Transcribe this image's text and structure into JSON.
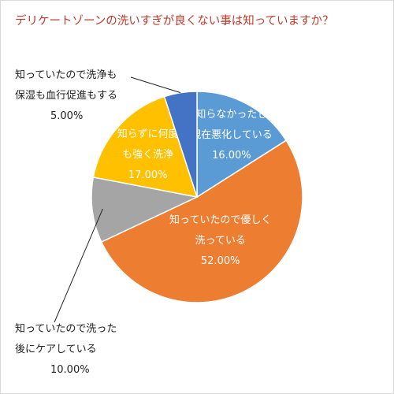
{
  "chart_data": {
    "type": "pie",
    "title": "デリケートゾーンの洗いすぎが良くない事は知っていますか？",
    "slices": [
      {
        "label_lines": [
          "知らなかったし",
          "現在悪化している"
        ],
        "value": 16.0,
        "value_label": "16.00%",
        "color": "#5b9bd5"
      },
      {
        "label_lines": [
          "知っていたので優しく",
          "洗っている"
        ],
        "value": 52.0,
        "value_label": "52.00%",
        "color": "#ed7d31"
      },
      {
        "label_lines": [
          "知っていたので洗った",
          "後にケアしている"
        ],
        "value": 10.0,
        "value_label": "10.00%",
        "color": "#a5a5a5"
      },
      {
        "label_lines": [
          "知らずに何度",
          "も強く洗浄"
        ],
        "value": 17.0,
        "value_label": "17.00%",
        "color": "#ffc000"
      },
      {
        "label_lines": [
          "知っていたので洗浄も",
          "保湿も血行促進もする"
        ],
        "value": 5.0,
        "value_label": "5.00%",
        "color": "#4472c4"
      }
    ],
    "start_angle_deg": 0,
    "direction": "clockwise",
    "label_placement": [
      "inside",
      "inside",
      "outside-left-leader",
      "inside",
      "outside-left-leader"
    ]
  }
}
